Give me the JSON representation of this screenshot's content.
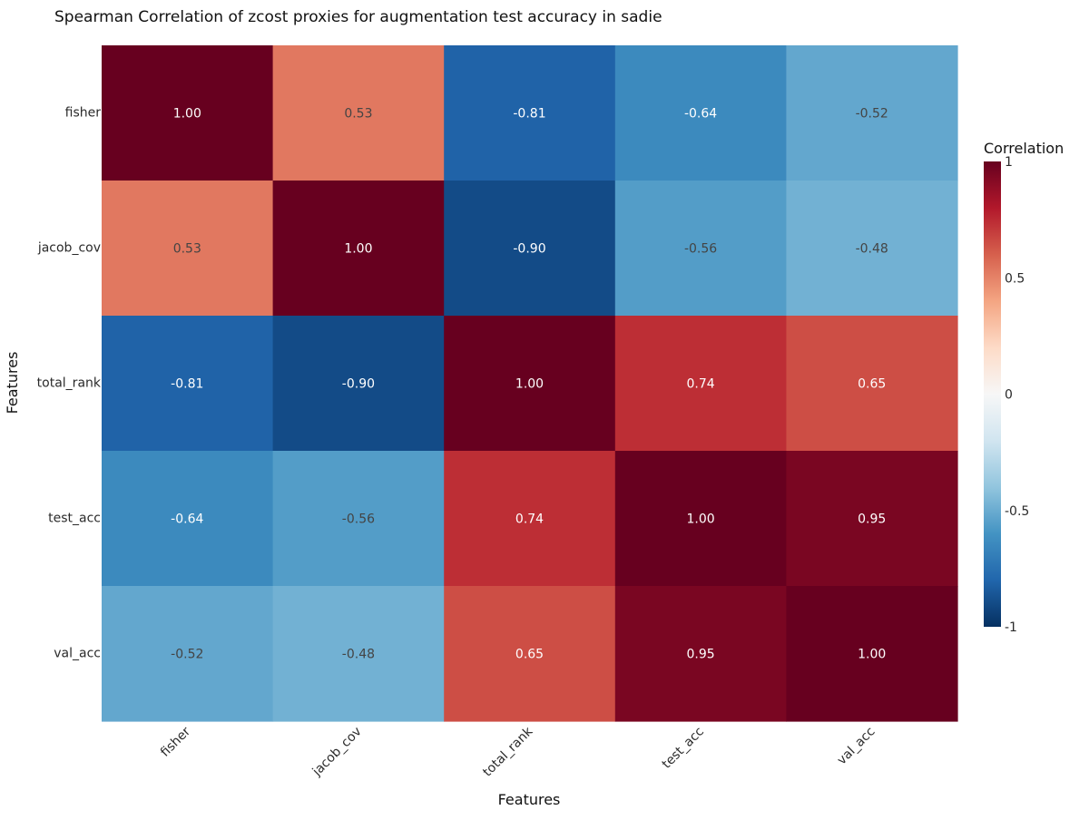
{
  "chart_data": {
    "type": "heatmap",
    "title": "Spearman Correlation of zcost proxies for augmentation test accuracy in sadie",
    "xlabel": "Features",
    "ylabel": "Features",
    "x_categories": [
      "fisher",
      "jacob_cov",
      "total_rank",
      "test_acc",
      "val_acc"
    ],
    "y_categories": [
      "fisher",
      "jacob_cov",
      "total_rank",
      "test_acc",
      "val_acc"
    ],
    "values": [
      [
        1.0,
        0.53,
        -0.81,
        -0.64,
        -0.52
      ],
      [
        0.53,
        1.0,
        -0.9,
        -0.56,
        -0.48
      ],
      [
        -0.81,
        -0.9,
        1.0,
        0.74,
        0.65
      ],
      [
        -0.64,
        -0.56,
        0.74,
        1.0,
        0.95
      ],
      [
        -0.52,
        -0.48,
        0.65,
        0.95,
        1.0
      ]
    ],
    "value_format": "0.00",
    "colorscale": "RdBu",
    "zmin": -1,
    "zmax": 1,
    "colorbar": {
      "title": "Correlation",
      "ticks": [
        1,
        0.5,
        0,
        -0.5,
        -1
      ],
      "tick_labels": [
        "1",
        "0.5",
        "0",
        "-0.5",
        "-1"
      ]
    },
    "colors": {
      "text_light": "#ffffff",
      "text_dark": "#444444",
      "axis_text": "#2a2a2a"
    }
  }
}
